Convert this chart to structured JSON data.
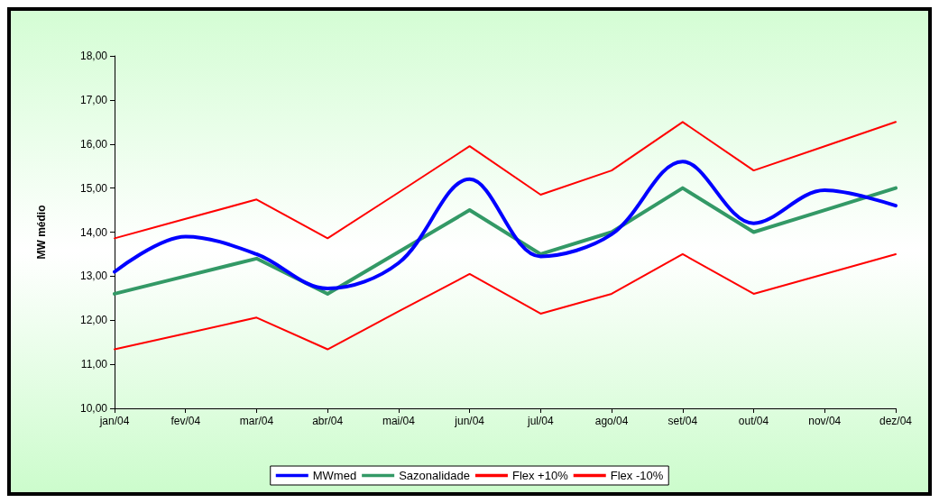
{
  "chart_data": {
    "type": "line",
    "ylabel": "MW médio",
    "categories": [
      "jan/04",
      "fev/04",
      "mar/04",
      "abr/04",
      "mai/04",
      "jun/04",
      "jul/04",
      "ago/04",
      "set/04",
      "out/04",
      "nov/04",
      "dez/04"
    ],
    "series": [
      {
        "name": "MWmed",
        "color": "#0000ff",
        "values": [
          13.1,
          13.9,
          13.5,
          12.72,
          13.3,
          15.2,
          13.45,
          13.95,
          15.6,
          14.2,
          14.95,
          14.6
        ]
      },
      {
        "name": "Sazonalidade",
        "color": "#339966",
        "values": [
          12.6,
          13.0,
          13.4,
          12.6,
          13.55,
          14.5,
          13.5,
          14.0,
          15.0,
          14.0,
          14.5,
          15.0
        ]
      },
      {
        "name": "Flex +10%",
        "color": "#ff0000",
        "values": [
          13.86,
          14.3,
          14.74,
          13.86,
          14.9,
          15.95,
          14.85,
          15.4,
          16.5,
          15.4,
          15.95,
          16.5
        ]
      },
      {
        "name": "Flex -10%",
        "color": "#ff0000",
        "values": [
          11.34,
          11.7,
          12.06,
          11.34,
          12.2,
          13.05,
          12.15,
          12.6,
          13.5,
          12.6,
          13.05,
          13.5
        ]
      }
    ],
    "ylim": [
      10,
      18
    ],
    "yticks": [
      {
        "value": 10,
        "label": "10,00"
      },
      {
        "value": 11,
        "label": "11,00"
      },
      {
        "value": 12,
        "label": "12,00"
      },
      {
        "value": 13,
        "label": "13,00"
      },
      {
        "value": 14,
        "label": "14,00"
      },
      {
        "value": 15,
        "label": "15,00"
      },
      {
        "value": 16,
        "label": "16,00"
      },
      {
        "value": 17,
        "label": "17,00"
      },
      {
        "value": 18,
        "label": "18,00"
      }
    ],
    "grid": false,
    "legend": "bottom",
    "marker": "none",
    "line_style": "solid"
  }
}
